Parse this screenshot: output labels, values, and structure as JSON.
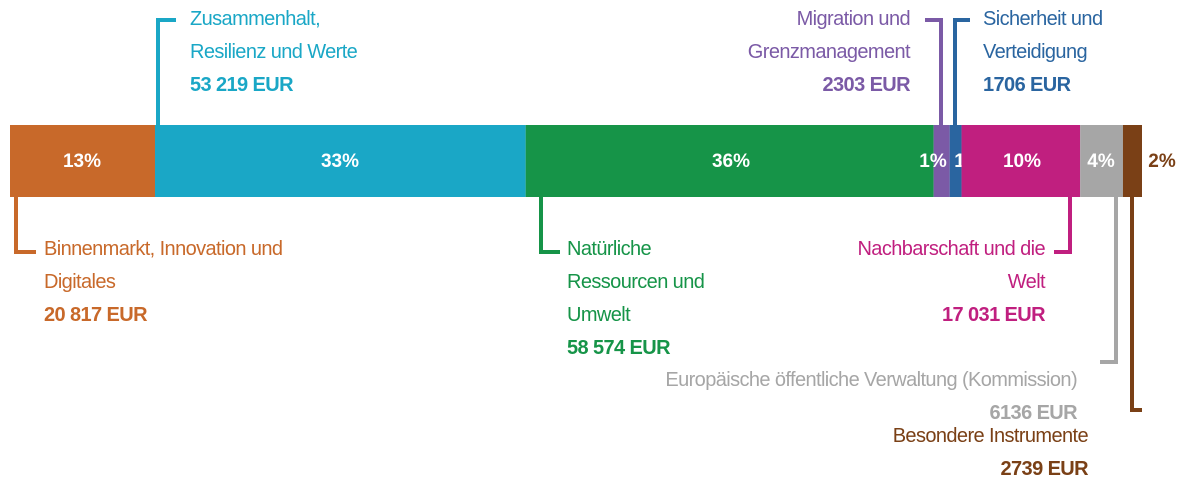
{
  "chart_data": {
    "type": "stacked_bar",
    "series": [
      {
        "name": "Binnenmarkt, Innovation und Digitales",
        "color": "#c8692a",
        "values": [
          20817
        ],
        "value_labels": [
          "20 817 EUR"
        ],
        "share": 13,
        "share_label": "13%"
      },
      {
        "name": "Zusammenhalt, Resilienz und Werte",
        "color": "#1aa7c6",
        "values": [
          53219
        ],
        "value_labels": [
          "53 219 EUR"
        ],
        "share": 33,
        "share_label": "33%"
      },
      {
        "name": "Natürliche Ressourcen und Umwelt",
        "color": "#169448",
        "values": [
          58574
        ],
        "value_labels": [
          "58 574 EUR"
        ],
        "share": 36,
        "share_label": "36%"
      },
      {
        "name": "Migration und Grenzmanagement",
        "color": "#7b5aa6",
        "values": [
          2303
        ],
        "value_labels": [
          "2303 EUR"
        ],
        "share": 1,
        "share_label": "1%"
      },
      {
        "name": "Sicherheit und Verteidigung",
        "color": "#2a65a0",
        "values": [
          1706
        ],
        "value_labels": [
          "1706 EUR"
        ],
        "share": 1,
        "share_label": "1%"
      },
      {
        "name": "Nachbarschaft und die Welt",
        "color": "#c01f7f",
        "values": [
          17031
        ],
        "value_labels": [
          "17 031 EUR"
        ],
        "share": 10,
        "share_label": "10%"
      },
      {
        "name": "Europäische öffentliche Verwaltung (Kommission)",
        "color": "#a6a6a6",
        "values": [
          6136
        ],
        "value_labels": [
          "6136 EUR"
        ],
        "share": 4,
        "share_label": "4%"
      },
      {
        "name": "Besondere Instrumente",
        "color": "#7a4016",
        "values": [
          2739
        ],
        "value_labels": [
          "2739 EUR"
        ],
        "share": 2,
        "share_label": "2%"
      }
    ]
  }
}
